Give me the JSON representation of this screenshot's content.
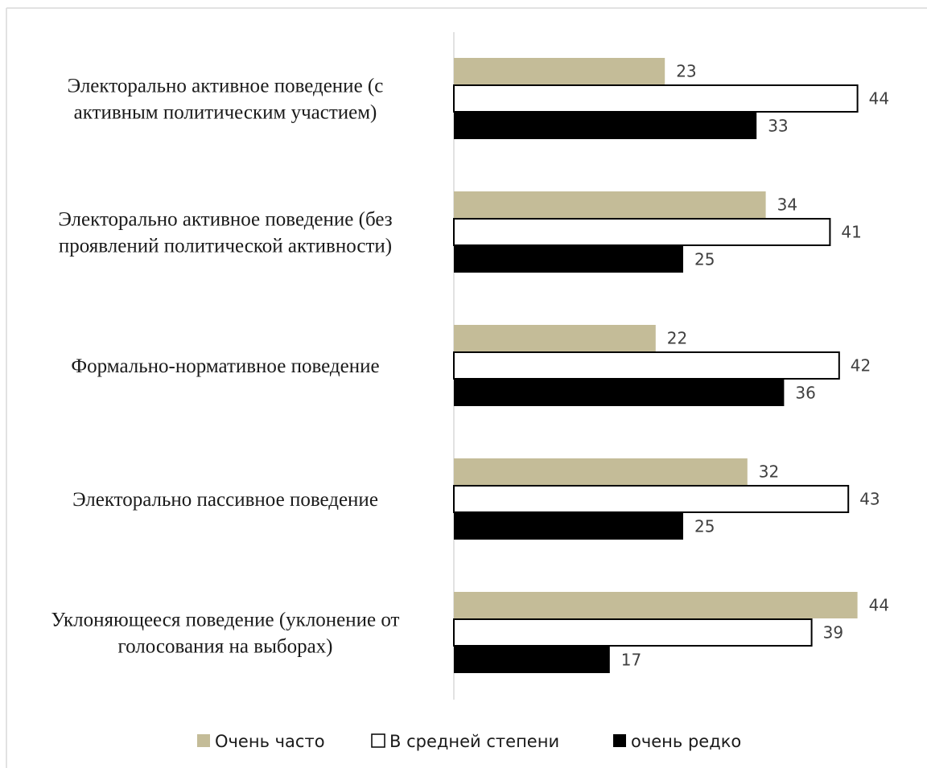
{
  "chart_data": {
    "type": "bar",
    "orientation": "horizontal",
    "categories": [
      [
        "Электорально активное поведение (с",
        "активным политическим участием)"
      ],
      [
        "Электорально активное поведение (без",
        "проявлений политической активности)"
      ],
      [
        "Формально-нормативное поведение"
      ],
      [
        "Электорально пассивное поведение"
      ],
      [
        "Уклоняющееся поведение (уклонение от",
        "голосования на выборах)"
      ]
    ],
    "series": [
      {
        "name": "Очень часто",
        "values": [
          23,
          34,
          22,
          32,
          44
        ],
        "color": "#c4bc98"
      },
      {
        "name": "В средней степени",
        "values": [
          44,
          41,
          42,
          43,
          39
        ],
        "color": "#ffffff"
      },
      {
        "name": "очень редко",
        "values": [
          33,
          25,
          36,
          25,
          17
        ],
        "color": "#000000"
      }
    ],
    "xlim": [
      0,
      45
    ],
    "grid": false,
    "legend_position": "bottom"
  }
}
